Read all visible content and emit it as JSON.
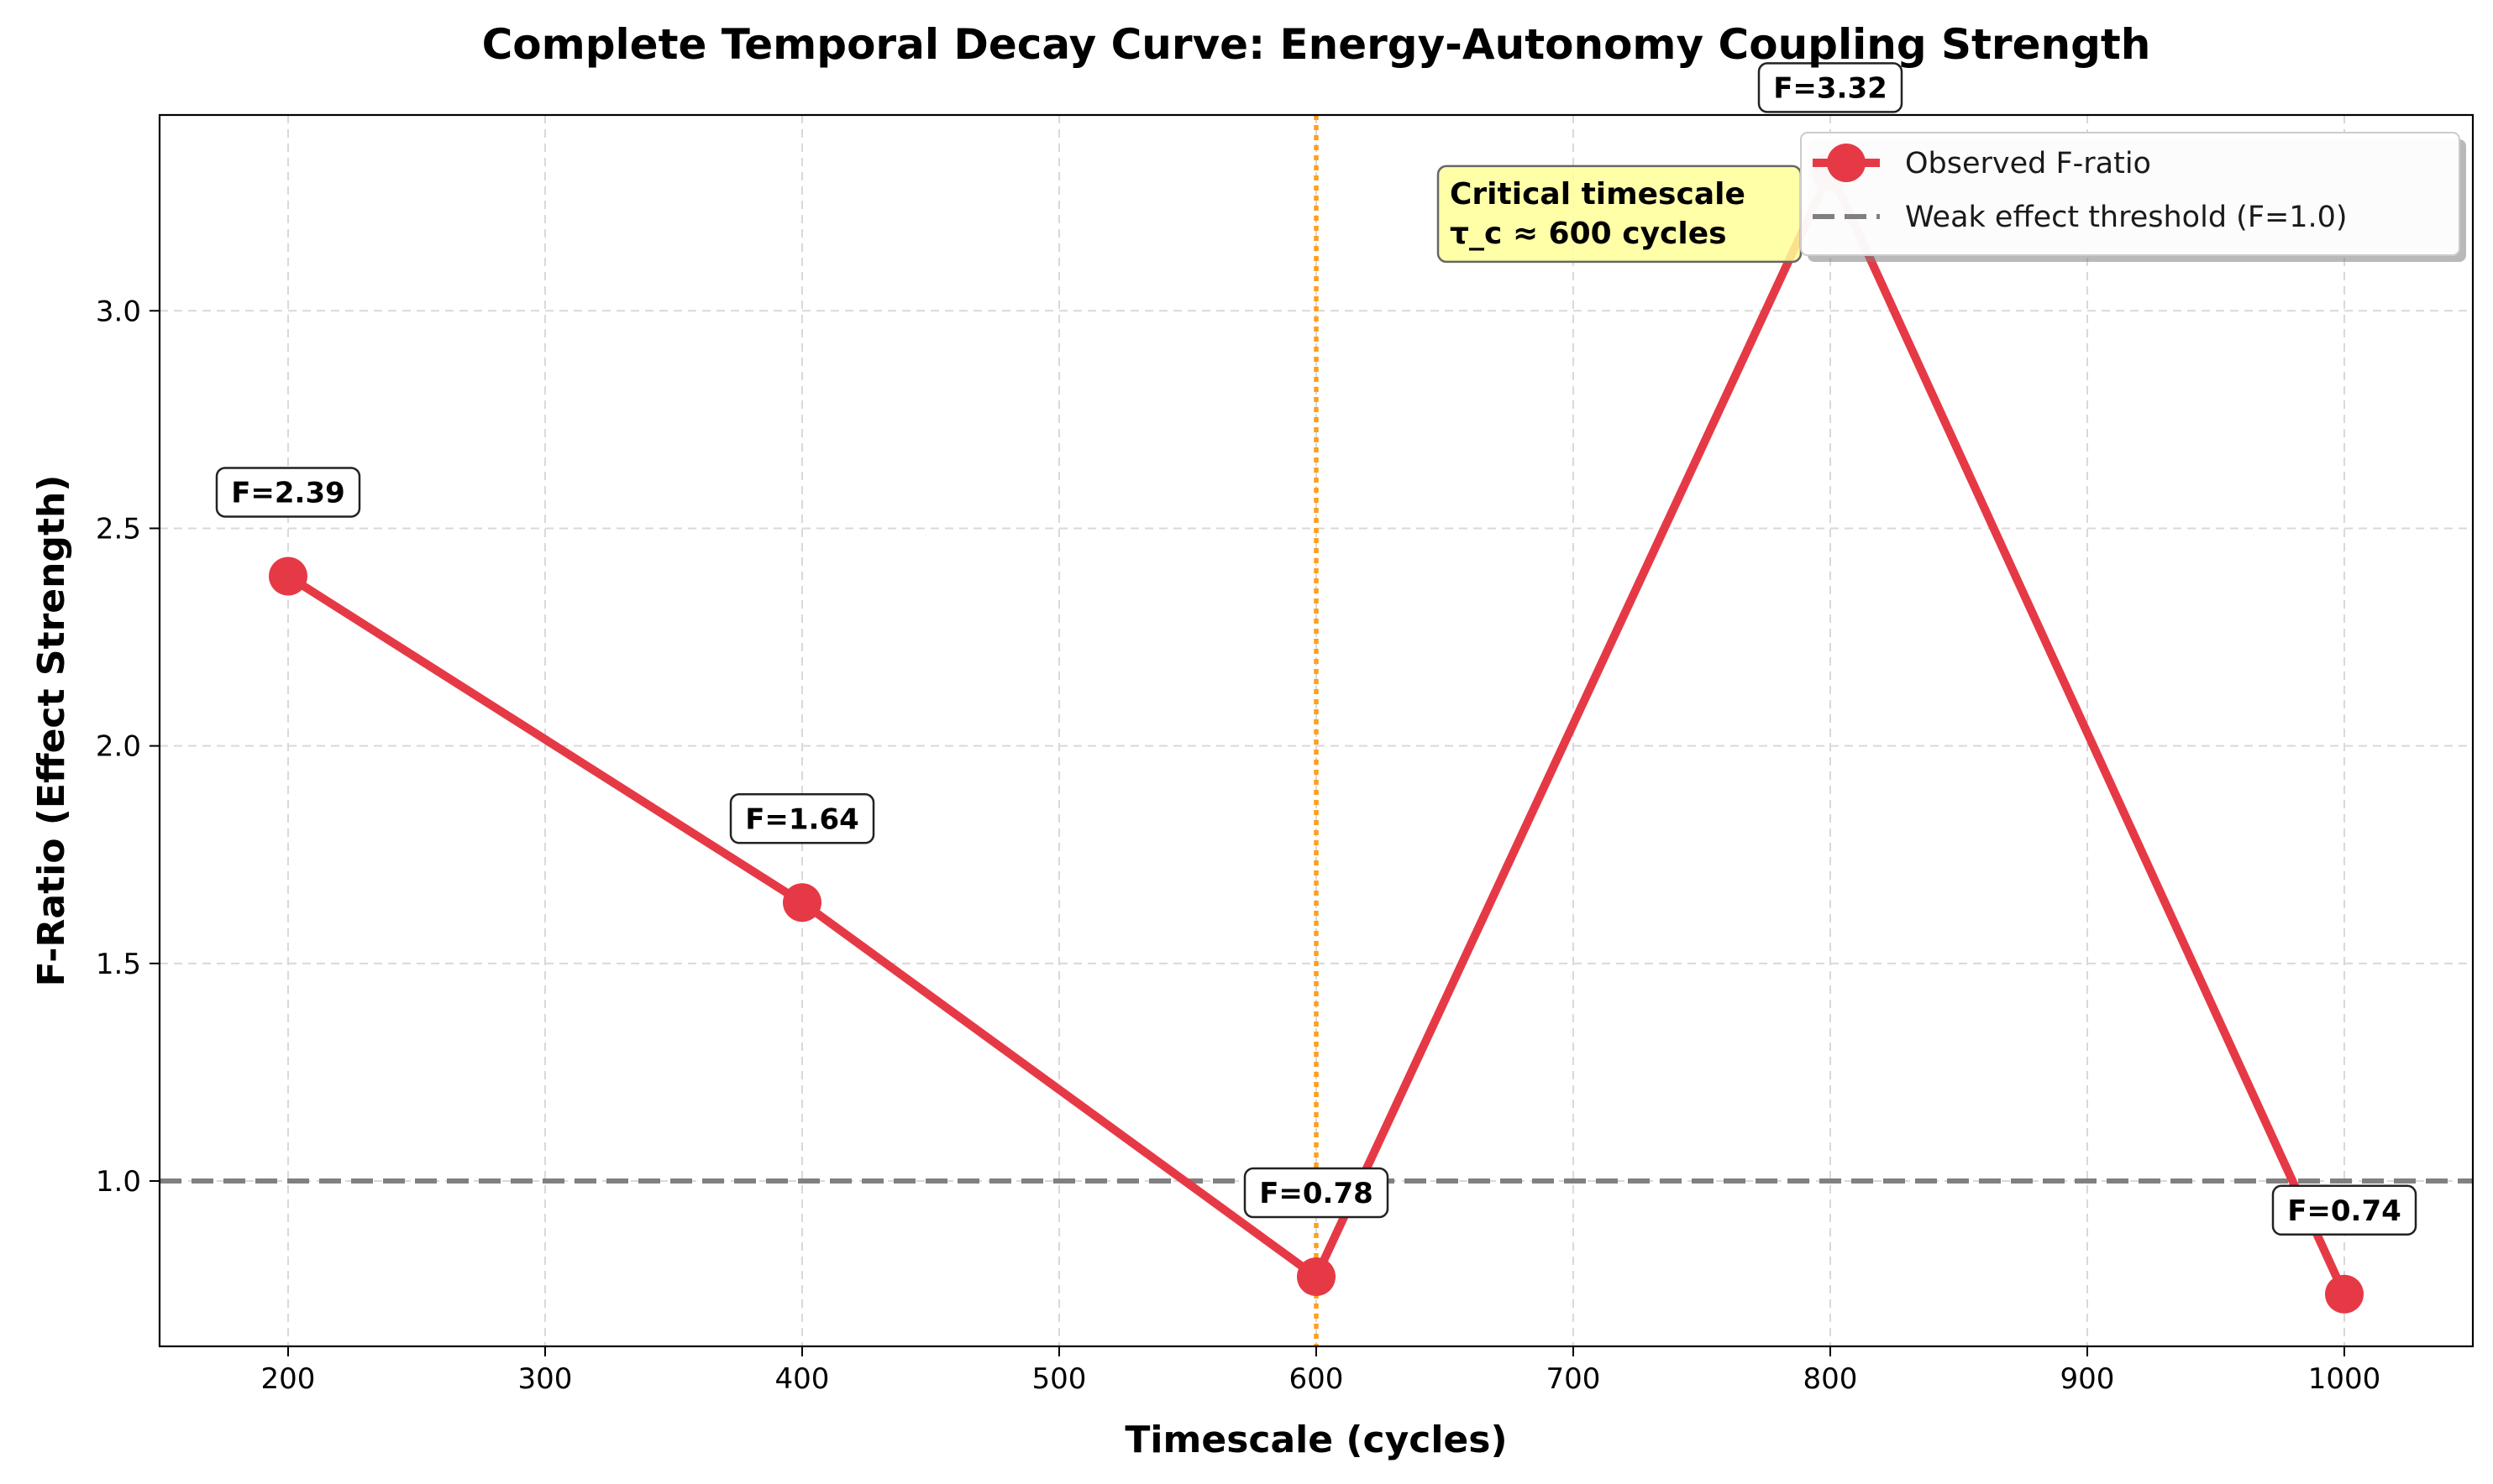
{
  "chart_data": {
    "type": "line",
    "title": "Complete Temporal Decay Curve: Energy-Autonomy Coupling Strength",
    "xlabel": "Timescale (cycles)",
    "ylabel": "F-Ratio (Effect Strength)",
    "xlim": [
      150,
      1050
    ],
    "ylim": [
      0.62,
      3.45
    ],
    "xticks": [
      200,
      300,
      400,
      500,
      600,
      700,
      800,
      900,
      1000
    ],
    "yticks": [
      1.0,
      1.5,
      2.0,
      2.5,
      3.0
    ],
    "grid": true,
    "legend_position": "top-right",
    "series": [
      {
        "name": "Observed F-ratio",
        "color": "#e63946",
        "x": [
          200,
          400,
          600,
          800,
          1000
        ],
        "y": [
          2.39,
          1.64,
          0.78,
          3.32,
          0.74
        ],
        "labels": [
          "F=2.39",
          "F=1.64",
          "F=0.78",
          "F=3.32",
          "F=0.74"
        ]
      }
    ],
    "reference_lines": [
      {
        "name": "Weak effect threshold (F=1.0)",
        "orientation": "horizontal",
        "value": 1.0,
        "color": "#808080",
        "style": "dashed"
      },
      {
        "orientation": "vertical",
        "value": 600,
        "color": "#ff9f1c",
        "style": "dotted"
      }
    ],
    "annotation": {
      "lines": [
        "Critical timescale",
        "τ_c ≈ 600 cycles"
      ],
      "anchor_x": 650,
      "anchor_y": 3.13,
      "background": "#ffff99"
    }
  }
}
